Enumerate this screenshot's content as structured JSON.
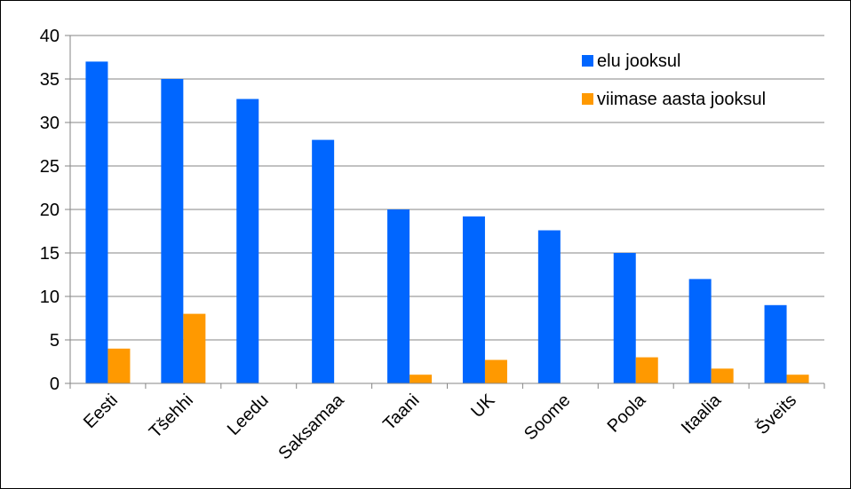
{
  "chart_data": {
    "type": "bar",
    "title": "",
    "categories": [
      "Eesti",
      "Tšehhi",
      "Leedu",
      "Saksamaa",
      "Taani",
      "UK",
      "Soome",
      "Poola",
      "Itaalia",
      "Šveits"
    ],
    "series": [
      {
        "name": "elu jooksul",
        "values": [
          37,
          35,
          32.7,
          28,
          20,
          19.2,
          17.6,
          15,
          12,
          9
        ],
        "color": "#0066ff"
      },
      {
        "name": "viimase aasta jooksul",
        "values": [
          4,
          8,
          0,
          0,
          1,
          2.7,
          0,
          3,
          1.7,
          1
        ],
        "color": "#ff9900"
      }
    ],
    "xlabel": "",
    "ylabel": "",
    "ylim": [
      0,
      40
    ],
    "yticks": [
      0,
      5,
      10,
      15,
      20,
      25,
      30,
      35,
      40
    ],
    "grid": true,
    "legend_position": "top-right"
  }
}
